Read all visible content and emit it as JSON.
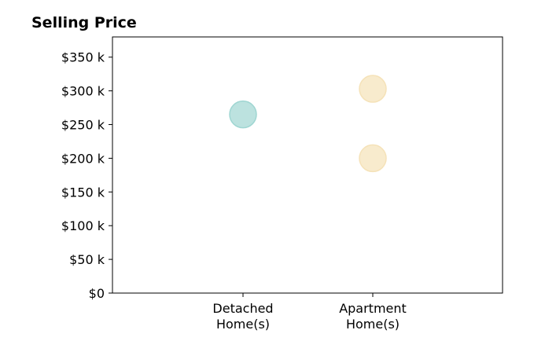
{
  "chart_data": {
    "type": "scatter",
    "title": "Selling Price",
    "xlabel": "",
    "ylabel": "",
    "categories": [
      [
        "Detached",
        "Home(s)"
      ],
      [
        "Apartment",
        "Home(s)"
      ]
    ],
    "y_ticks": [
      {
        "value": 0,
        "label": "$0"
      },
      {
        "value": 50,
        "label": "$50 k"
      },
      {
        "value": 100,
        "label": "$100 k"
      },
      {
        "value": 150,
        "label": "$150 k"
      },
      {
        "value": 200,
        "label": "$200 k"
      },
      {
        "value": 250,
        "label": "$250 k"
      },
      {
        "value": 300,
        "label": "$300 k"
      },
      {
        "value": 350,
        "label": "$350 k"
      }
    ],
    "ylim": [
      0,
      380
    ],
    "grid": false,
    "points": [
      {
        "category": 0,
        "y": 265,
        "color": "#9fd6d2"
      },
      {
        "category": 1,
        "y": 303,
        "color": "#f5e2b8"
      },
      {
        "category": 1,
        "y": 200,
        "color": "#f5e2b8"
      }
    ]
  }
}
